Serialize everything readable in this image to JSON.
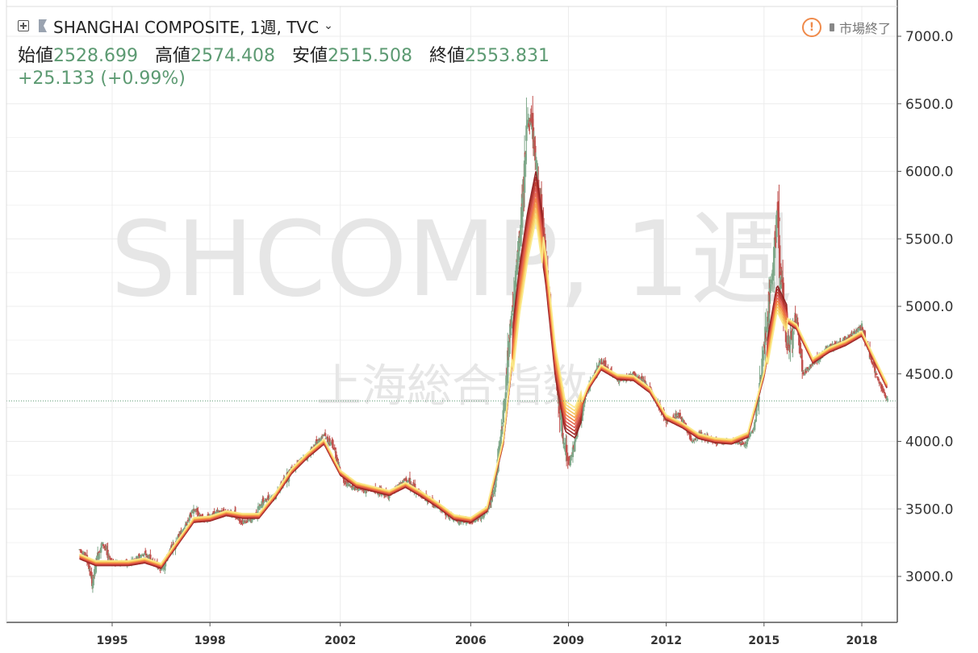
{
  "legend": {
    "symbol_line": "SHANGHAI COMPOSITE, 1週, TVC",
    "ohlc": [
      {
        "label": "始値",
        "value": "2528.699"
      },
      {
        "label": "高値",
        "value": "2574.408"
      },
      {
        "label": "安値",
        "value": "2515.508"
      },
      {
        "label": "終値",
        "value": "2553.831"
      }
    ],
    "change": "+25.133 (+0.99%)"
  },
  "status": {
    "text": "市場終了",
    "icon": "warning-icon"
  },
  "watermark": {
    "main": "SHCOMP, 1週",
    "sub": "上海総合指数"
  },
  "colors": {
    "up": "#7fa88a",
    "down": "#c0504d",
    "ema": [
      "#8b1a1a",
      "#a52a2a",
      "#c0392b",
      "#d9534f",
      "#e8684a",
      "#f0803c",
      "#f4a04a",
      "#f7c25a",
      "#f9d86a",
      "#fbe98a"
    ],
    "price_line": "#5c9a72"
  },
  "chart_data": {
    "type": "line",
    "title": "SHANGHAI COMPOSITE, 1週, TVC",
    "y_axis": {
      "ticks": [
        "3000.0",
        "3500.0",
        "4000.0",
        "4500.0",
        "5000.0",
        "5500.0",
        "6000.0",
        "6500.0",
        "7000.0"
      ],
      "range": [
        2800,
        7200
      ]
    },
    "x_axis": {
      "ticks": [
        "1995",
        "1998",
        "2002",
        "2006",
        "2009",
        "2012",
        "2015",
        "2018"
      ]
    },
    "current_level": 4300,
    "price_points": [
      [
        1994.0,
        3200
      ],
      [
        1994.2,
        3150
      ],
      [
        1994.4,
        2950
      ],
      [
        1994.55,
        3150
      ],
      [
        1994.7,
        3250
      ],
      [
        1995.0,
        3100
      ],
      [
        1995.5,
        3100
      ],
      [
        1996.0,
        3170
      ],
      [
        1996.5,
        3050
      ],
      [
        1996.8,
        3200
      ],
      [
        1997.2,
        3350
      ],
      [
        1997.5,
        3500
      ],
      [
        1997.8,
        3420
      ],
      [
        1998.3,
        3480
      ],
      [
        1998.7,
        3470
      ],
      [
        1999.0,
        3400
      ],
      [
        1999.3,
        3420
      ],
      [
        1999.6,
        3550
      ],
      [
        2000.0,
        3600
      ],
      [
        2000.5,
        3800
      ],
      [
        2001.0,
        3900
      ],
      [
        2001.5,
        4050
      ],
      [
        2001.8,
        3950
      ],
      [
        2002.1,
        3700
      ],
      [
        2002.5,
        3650
      ],
      [
        2003.0,
        3640
      ],
      [
        2003.5,
        3600
      ],
      [
        2004.0,
        3720
      ],
      [
        2004.5,
        3600
      ],
      [
        2005.0,
        3520
      ],
      [
        2005.5,
        3420
      ],
      [
        2006.0,
        3400
      ],
      [
        2006.4,
        3450
      ],
      [
        2006.7,
        3600
      ],
      [
        2007.0,
        4200
      ],
      [
        2007.2,
        4800
      ],
      [
        2007.5,
        5500
      ],
      [
        2007.75,
        6400
      ],
      [
        2007.9,
        6300
      ],
      [
        2008.2,
        5600
      ],
      [
        2008.5,
        4800
      ],
      [
        2008.8,
        4100
      ],
      [
        2009.0,
        3800
      ],
      [
        2009.2,
        4000
      ],
      [
        2009.6,
        4400
      ],
      [
        2010.0,
        4600
      ],
      [
        2010.3,
        4500
      ],
      [
        2010.6,
        4450
      ],
      [
        2011.0,
        4500
      ],
      [
        2011.3,
        4450
      ],
      [
        2011.7,
        4300
      ],
      [
        2012.0,
        4150
      ],
      [
        2012.4,
        4200
      ],
      [
        2012.8,
        4000
      ],
      [
        2013.0,
        4050
      ],
      [
        2013.5,
        4000
      ],
      [
        2014.0,
        4000
      ],
      [
        2014.4,
        3980
      ],
      [
        2014.7,
        4100
      ],
      [
        2014.9,
        4500
      ],
      [
        2015.2,
        5100
      ],
      [
        2015.4,
        5700
      ],
      [
        2015.5,
        5300
      ],
      [
        2015.7,
        4700
      ],
      [
        2016.0,
        4900
      ],
      [
        2016.2,
        4500
      ],
      [
        2016.6,
        4600
      ],
      [
        2017.0,
        4700
      ],
      [
        2017.5,
        4750
      ],
      [
        2018.0,
        4850
      ],
      [
        2018.3,
        4600
      ],
      [
        2018.6,
        4400
      ],
      [
        2018.8,
        4300
      ]
    ],
    "moving_average_points": [
      [
        1994.0,
        3150
      ],
      [
        1994.5,
        3100
      ],
      [
        1995.0,
        3100
      ],
      [
        1995.5,
        3100
      ],
      [
        1996.0,
        3120
      ],
      [
        1996.5,
        3080
      ],
      [
        1997.0,
        3250
      ],
      [
        1997.5,
        3420
      ],
      [
        1998.0,
        3430
      ],
      [
        1998.5,
        3470
      ],
      [
        1999.0,
        3450
      ],
      [
        1999.5,
        3450
      ],
      [
        2000.0,
        3600
      ],
      [
        2000.5,
        3780
      ],
      [
        2001.0,
        3900
      ],
      [
        2001.5,
        4000
      ],
      [
        2002.0,
        3770
      ],
      [
        2002.5,
        3680
      ],
      [
        2003.0,
        3650
      ],
      [
        2003.5,
        3620
      ],
      [
        2004.0,
        3680
      ],
      [
        2004.5,
        3610
      ],
      [
        2005.0,
        3530
      ],
      [
        2005.5,
        3440
      ],
      [
        2006.0,
        3420
      ],
      [
        2006.5,
        3500
      ],
      [
        2007.0,
        4000
      ],
      [
        2007.5,
        5100
      ],
      [
        2007.75,
        5500
      ],
      [
        2008.0,
        5800
      ],
      [
        2008.3,
        5300
      ],
      [
        2008.6,
        4600
      ],
      [
        2008.9,
        4200
      ],
      [
        2009.2,
        4150
      ],
      [
        2009.6,
        4400
      ],
      [
        2010.0,
        4550
      ],
      [
        2010.5,
        4480
      ],
      [
        2011.0,
        4470
      ],
      [
        2011.5,
        4380
      ],
      [
        2012.0,
        4180
      ],
      [
        2012.5,
        4120
      ],
      [
        2013.0,
        4040
      ],
      [
        2013.5,
        4010
      ],
      [
        2014.0,
        4000
      ],
      [
        2014.5,
        4050
      ],
      [
        2015.0,
        4500
      ],
      [
        2015.4,
        5050
      ],
      [
        2015.7,
        4900
      ],
      [
        2016.0,
        4850
      ],
      [
        2016.5,
        4600
      ],
      [
        2017.0,
        4680
      ],
      [
        2017.5,
        4730
      ],
      [
        2018.0,
        4800
      ],
      [
        2018.5,
        4550
      ],
      [
        2018.8,
        4400
      ]
    ]
  }
}
